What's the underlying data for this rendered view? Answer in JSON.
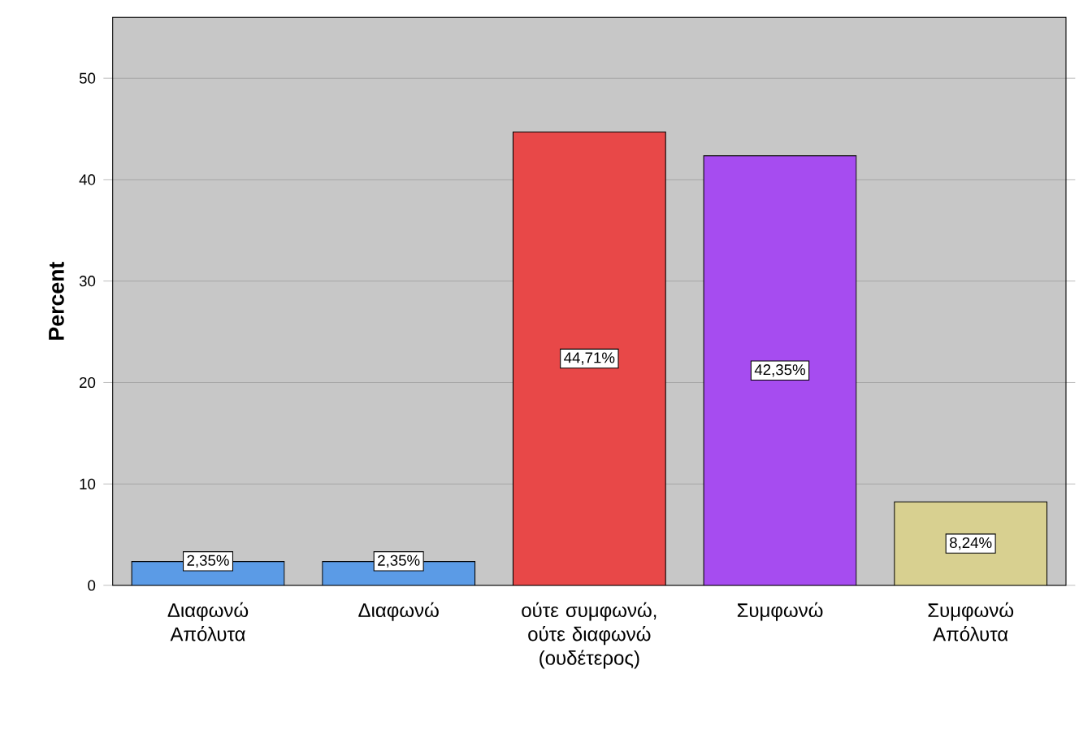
{
  "chart_data": {
    "type": "bar",
    "ylabel": "Percent",
    "categories": [
      "Διαφωνώ Απόλυτα",
      "Διαφωνώ",
      "ούτε συμφωνώ, ούτε διαφωνώ (ουδέτερος)",
      "Συμφωνώ",
      "Συμφωνώ Απόλυτα"
    ],
    "values": [
      2.35,
      2.35,
      44.71,
      42.35,
      8.24
    ],
    "colors": [
      "#5b9be6",
      "#5b9be6",
      "#e84848",
      "#a64cf0",
      "#d8d090"
    ],
    "value_labels": [
      "2,35%",
      "2,35%",
      "44,71%",
      "42,35%",
      "8,24%"
    ],
    "ylim": [
      0,
      56
    ],
    "yticks": [
      0,
      10,
      20,
      30,
      40,
      50
    ],
    "grid": "y"
  }
}
